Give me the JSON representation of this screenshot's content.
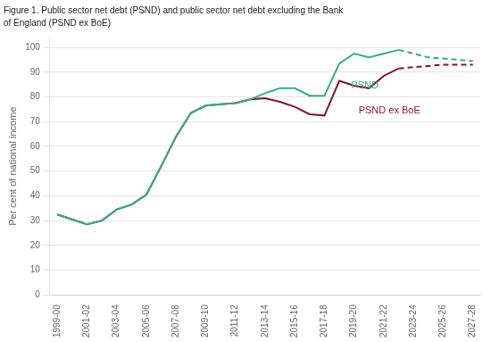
{
  "chart_data": {
    "type": "line",
    "title": "Figure 1. Public sector net debt (PSND) and public sector net debt excluding the Bank",
    "subtitle": "of England (PSND ex BoE)",
    "ylabel": "Per cent of national income",
    "categories": [
      "1999-00",
      null,
      "2001-02",
      null,
      "2003-04",
      null,
      "2005-06",
      null,
      "2007-08",
      null,
      "2009-10",
      null,
      "2011-12",
      null,
      "2013-14",
      null,
      "2015-16",
      null,
      "2017-18",
      null,
      "2019-20",
      null,
      "2021-22",
      null,
      "2023-24",
      null,
      "2025-26",
      null,
      "2027-28"
    ],
    "series": [
      {
        "color": "#3aaa8c",
        "line_style": "solid",
        "values": [
          32.5,
          30.5,
          28.5,
          30.0,
          34.5,
          36.5,
          40.5,
          52.0,
          64.0,
          73.5,
          76.5,
          77.0,
          77.5,
          79.0,
          81.5,
          83.5,
          83.5,
          80.5,
          80.5,
          93.5,
          97.5,
          96.0,
          97.5,
          99.0,
          null,
          null,
          null,
          null,
          null
        ]
      },
      {
        "color": "#3aaa8c",
        "line_style": "dashed",
        "values": [
          null,
          null,
          null,
          null,
          null,
          null,
          null,
          null,
          null,
          null,
          null,
          null,
          null,
          null,
          null,
          null,
          null,
          null,
          null,
          null,
          null,
          null,
          null,
          99.0,
          97.5,
          96.0,
          95.5,
          95.0,
          94.5
        ]
      },
      {
        "color": "#7b1538",
        "line_style": "solid",
        "values": [
          32.5,
          30.5,
          28.5,
          30.0,
          34.5,
          36.5,
          40.5,
          52.0,
          64.0,
          73.5,
          76.5,
          77.0,
          77.5,
          79.0,
          79.5,
          78.0,
          76.0,
          73.0,
          72.5,
          86.5,
          84.5,
          83.5,
          88.5,
          91.5,
          null,
          null,
          null,
          null,
          null
        ]
      },
      {
        "color": "#7b1538",
        "line_style": "dashed",
        "values": [
          null,
          null,
          null,
          null,
          null,
          null,
          null,
          null,
          null,
          null,
          null,
          null,
          null,
          null,
          null,
          null,
          null,
          null,
          null,
          null,
          null,
          null,
          null,
          91.5,
          92.0,
          92.5,
          93.0,
          93.0,
          93.0
        ]
      }
    ],
    "annotations": [
      {
        "text": "PSND",
        "x": 19.8,
        "y": 84.5,
        "color": "#3aaa8c"
      },
      {
        "text": "PSND ex BoE",
        "x": 20.3,
        "y": 74.5,
        "color": "#7b1538"
      }
    ],
    "ylim": [
      0,
      104
    ],
    "yticks": [
      0,
      10,
      20,
      30,
      40,
      50,
      60,
      70,
      80,
      90,
      100
    ],
    "grid": true
  }
}
